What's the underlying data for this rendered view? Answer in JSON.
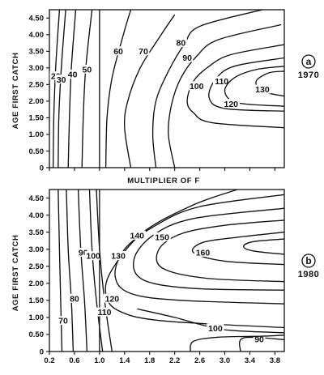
{
  "chart_data": [
    {
      "type": "contour",
      "panel_letter": "a",
      "year_label": "1970",
      "xlabel": "MULTIPLIER OF F",
      "ylabel": "AGE FIRST CATCH",
      "ylim": [
        0,
        4.75
      ],
      "y_ticks": [
        "0",
        "0.50",
        "1.00",
        "1.50",
        "2.00",
        "2.50",
        "3.00",
        "3.50",
        "4.00",
        "4.50"
      ],
      "reference_line_x": 1.0,
      "contour_levels": [
        {
          "label": "20",
          "points": [
            [
              0.26,
              0
            ],
            [
              0.27,
              1.5
            ],
            [
              0.3,
              3
            ],
            [
              0.36,
              4.75
            ]
          ],
          "label_at": [
            0.3,
            2.75
          ]
        },
        {
          "label": "30",
          "points": [
            [
              0.34,
              0
            ],
            [
              0.35,
              1.5
            ],
            [
              0.39,
              3
            ],
            [
              0.46,
              4.75
            ]
          ],
          "label_at": [
            0.39,
            2.65
          ]
        },
        {
          "label": "40",
          "points": [
            [
              0.5,
              0
            ],
            [
              0.52,
              1.5
            ],
            [
              0.55,
              3
            ],
            [
              0.62,
              4.75
            ]
          ],
          "label_at": [
            0.57,
            2.8
          ]
        },
        {
          "label": "50",
          "points": [
            [
              0.72,
              0
            ],
            [
              0.74,
              1.5
            ],
            [
              0.78,
              3
            ],
            [
              0.88,
              4.75
            ]
          ],
          "label_at": [
            0.8,
            2.95
          ]
        },
        {
          "label": "60",
          "points": [
            [
              1.1,
              0
            ],
            [
              1.12,
              1.5
            ],
            [
              1.2,
              2.7
            ],
            [
              1.38,
              4.0
            ],
            [
              1.5,
              4.75
            ]
          ],
          "label_at": [
            1.3,
            3.5
          ]
        },
        {
          "label": "70",
          "points": [
            [
              1.5,
              0
            ],
            [
              1.4,
              1.2
            ],
            [
              1.45,
              2.0
            ],
            [
              1.65,
              3.0
            ],
            [
              1.95,
              3.9
            ],
            [
              2.2,
              4.6
            ]
          ],
          "label_at": [
            1.7,
            3.5
          ]
        },
        {
          "label": "80",
          "points": [
            [
              1.9,
              0
            ],
            [
              1.85,
              1.0
            ],
            [
              1.9,
              2.0
            ],
            [
              2.1,
              2.9
            ],
            [
              2.35,
              3.7
            ],
            [
              2.6,
              4.25
            ],
            [
              3.6,
              4.75
            ]
          ],
          "label_at": [
            2.3,
            3.75
          ]
        },
        {
          "label": "90",
          "points": [
            [
              2.2,
              0
            ],
            [
              2.1,
              1.0
            ],
            [
              2.15,
              1.9
            ],
            [
              2.3,
              2.7
            ],
            [
              2.55,
              3.35
            ],
            [
              2.9,
              3.85
            ],
            [
              3.9,
              4.3
            ]
          ],
          "label_at": [
            2.4,
            3.3
          ]
        },
        {
          "label": "100",
          "points": [
            [
              3.95,
              1.2
            ],
            [
              2.8,
              1.35
            ],
            [
              2.5,
              1.65
            ],
            [
              2.4,
              2.0
            ],
            [
              2.5,
              2.6
            ],
            [
              2.75,
              3.05
            ],
            [
              3.1,
              3.4
            ],
            [
              3.95,
              3.7
            ]
          ],
          "label_at": [
            2.55,
            2.45
          ]
        },
        {
          "label": "110",
          "points": [
            [
              3.95,
              1.7
            ],
            [
              3.0,
              1.78
            ],
            [
              2.75,
              2.1
            ],
            [
              2.85,
              2.65
            ],
            [
              3.15,
              3.05
            ],
            [
              3.95,
              3.3
            ]
          ],
          "label_at": [
            2.95,
            2.6
          ]
        },
        {
          "label": "120",
          "points": [
            [
              3.95,
              1.85
            ],
            [
              3.2,
              1.95
            ],
            [
              3.0,
              2.3
            ],
            [
              3.15,
              2.7
            ],
            [
              3.5,
              2.95
            ],
            [
              3.95,
              3.05
            ]
          ],
          "label_at": [
            3.1,
            1.92
          ]
        },
        {
          "label": "130",
          "points": [
            [
              3.95,
              2.15
            ],
            [
              3.6,
              2.3
            ],
            [
              3.5,
              2.6
            ],
            [
              3.7,
              2.85
            ],
            [
              3.95,
              2.9
            ]
          ],
          "label_at": [
            3.6,
            2.35
          ]
        }
      ]
    },
    {
      "type": "contour",
      "panel_letter": "b",
      "year_label": "1980",
      "xlabel": "",
      "ylabel": "AGE FIRST CATCH",
      "xlim": [
        0.2,
        3.95
      ],
      "ylim": [
        0,
        4.75
      ],
      "x_ticks": [
        "0.2",
        "0.6",
        "1.0",
        "1.4",
        "1.8",
        "2.2",
        "2.6",
        "3.0",
        "3.4",
        "3.8"
      ],
      "y_ticks": [
        "0",
        "0.50",
        "1.00",
        "1.50",
        "2.00",
        "2.50",
        "3.00",
        "3.50",
        "4.00",
        "4.50"
      ],
      "reference_line_x": 1.0,
      "contour_levels": [
        {
          "label": "70",
          "points": [
            [
              0.4,
              0
            ],
            [
              0.38,
              1.5
            ],
            [
              0.36,
              3
            ],
            [
              0.34,
              4.75
            ]
          ],
          "label_at": [
            0.42,
            0.9
          ]
        },
        {
          "label": "80",
          "points": [
            [
              0.58,
              0
            ],
            [
              0.55,
              1.5
            ],
            [
              0.5,
              3
            ],
            [
              0.47,
              4.75
            ]
          ],
          "label_at": [
            0.6,
            1.55
          ]
        },
        {
          "label": "90",
          "points": [
            [
              0.8,
              0
            ],
            [
              0.76,
              1.5
            ],
            [
              0.7,
              3.0
            ],
            [
              0.66,
              4.75
            ]
          ],
          "label_at": [
            0.74,
            2.9
          ]
        },
        {
          "label": "100",
          "points": [
            [
              1.05,
              0
            ],
            [
              0.95,
              1.5
            ],
            [
              0.88,
              3.0
            ],
            [
              0.84,
              4.75
            ]
          ],
          "label_at": [
            0.9,
            2.8
          ]
        },
        {
          "label": "110",
          "points": [
            [
              1.2,
              0
            ],
            [
              1.08,
              1.5
            ],
            [
              1.0,
              3.0
            ],
            [
              0.95,
              4.75
            ]
          ],
          "label_at": [
            1.08,
            1.15
          ]
        },
        {
          "label": "120",
          "points": [
            [
              3.95,
              0.7
            ],
            [
              2.0,
              0.9
            ],
            [
              1.3,
              1.2
            ],
            [
              1.1,
              1.7
            ],
            [
              1.2,
              2.4
            ],
            [
              1.7,
              3.5
            ],
            [
              2.5,
              4.3
            ],
            [
              3.2,
              4.75
            ]
          ],
          "label_at": [
            1.2,
            1.55
          ]
        },
        {
          "label": "130",
          "points": [
            [
              3.95,
              1.4
            ],
            [
              2.3,
              1.5
            ],
            [
              1.5,
              1.7
            ],
            [
              1.25,
              2.2
            ],
            [
              1.4,
              3.0
            ],
            [
              1.9,
              3.7
            ],
            [
              2.6,
              4.25
            ],
            [
              3.95,
              4.6
            ]
          ],
          "label_at": [
            1.3,
            2.8
          ]
        },
        {
          "label": "140",
          "points": [
            [
              3.95,
              1.8
            ],
            [
              2.5,
              1.85
            ],
            [
              1.7,
              2.1
            ],
            [
              1.55,
              2.7
            ],
            [
              1.85,
              3.4
            ],
            [
              2.5,
              3.9
            ],
            [
              3.95,
              4.2
            ]
          ],
          "label_at": [
            1.6,
            3.4
          ]
        },
        {
          "label": "150",
          "points": [
            [
              3.95,
              2.05
            ],
            [
              2.7,
              2.15
            ],
            [
              2.0,
              2.45
            ],
            [
              1.95,
              3.0
            ],
            [
              2.3,
              3.45
            ],
            [
              3.0,
              3.7
            ],
            [
              3.95,
              3.85
            ]
          ],
          "label_at": [
            2.0,
            3.35
          ]
        },
        {
          "label": "160",
          "points": [
            [
              3.95,
              2.55
            ],
            [
              3.0,
              2.65
            ],
            [
              2.5,
              2.9
            ],
            [
              2.65,
              3.2
            ],
            [
              3.2,
              3.35
            ],
            [
              3.95,
              3.5
            ]
          ],
          "label_at": [
            2.65,
            2.9
          ]
        },
        {
          "label": "",
          "points": [
            [
              3.95,
              2.85
            ],
            [
              3.45,
              2.95
            ],
            [
              3.3,
              3.08
            ],
            [
              3.45,
              3.22
            ],
            [
              3.95,
              3.3
            ]
          ],
          "label_at": null
        },
        {
          "label": "100",
          "points": [
            [
              3.95,
              0.55
            ],
            [
              3.1,
              0.62
            ],
            [
              2.7,
              0.75
            ],
            [
              2.2,
              1.0
            ],
            [
              1.6,
              1.25
            ]
          ],
          "label_at": [
            2.85,
            0.68
          ]
        },
        {
          "label": "90",
          "points": [
            [
              3.95,
              0.35
            ],
            [
              3.3,
              0.4
            ],
            [
              3.25,
              0
            ]
          ],
          "label_at": [
            3.55,
            0.36
          ]
        },
        {
          "label": "",
          "points": [
            [
              2.45,
              0
            ],
            [
              2.5,
              0.3
            ],
            [
              2.9,
              0.42
            ],
            [
              3.6,
              0.45
            ],
            [
              3.95,
              0.48
            ]
          ],
          "label_at": null
        }
      ]
    }
  ]
}
